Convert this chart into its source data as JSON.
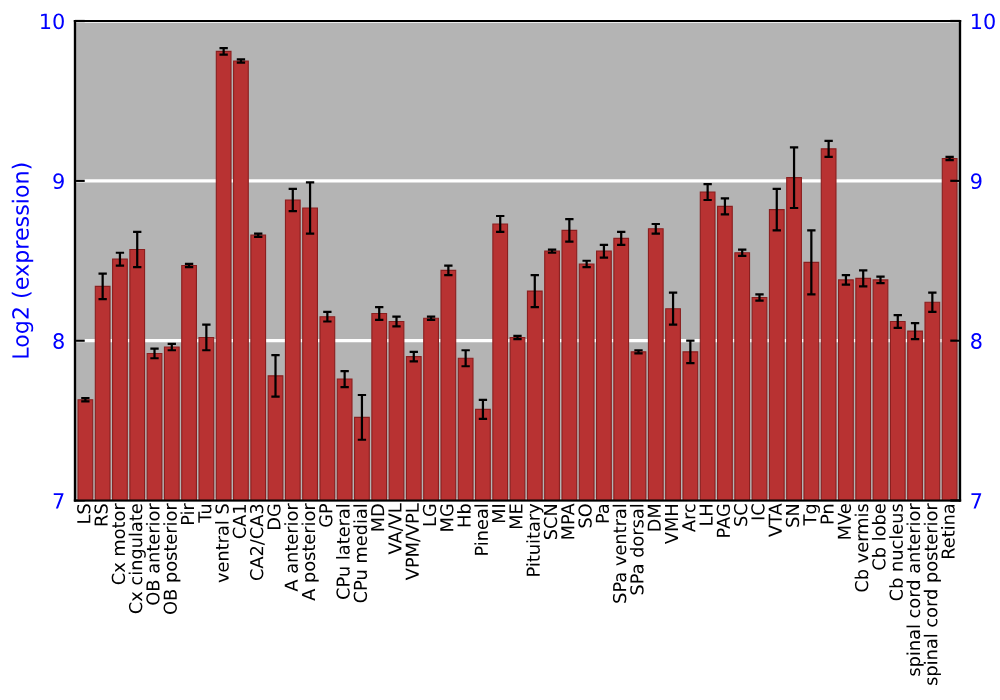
{
  "chart_data": {
    "type": "bar",
    "ylabel": "Log2 (expression)",
    "categories": [
      "LS",
      "RS",
      "Cx motor",
      "Cx cingulate",
      "OB anterior",
      "OB posterior",
      "Pir",
      "Tu",
      "ventral S",
      "CA1",
      "CA2/CA3",
      "DG",
      "A anterior",
      "A posterior",
      "GP",
      "CPu lateral",
      "CPu medial",
      "MD",
      "VA/VL",
      "VPM/VPL",
      "LG",
      "MG",
      "Hb",
      "Pineal",
      "MI",
      "ME",
      "Pituitary",
      "SCN",
      "MPA",
      "SO",
      "Pa",
      "SPa ventral",
      "SPa dorsal",
      "DM",
      "VMH",
      "Arc",
      "LH",
      "PAG",
      "SC",
      "IC",
      "VTA",
      "SN",
      "Tg",
      "Pn",
      "MVe",
      "Cb vermis",
      "Cb lobe",
      "Cb nucleus",
      "spinal cord anterior",
      "spinal cord posterior",
      "Retina"
    ],
    "values": [
      7.63,
      8.34,
      8.51,
      8.57,
      7.92,
      7.96,
      8.47,
      8.02,
      9.81,
      9.75,
      8.66,
      7.78,
      8.88,
      8.83,
      8.15,
      7.76,
      7.52,
      8.17,
      8.12,
      7.9,
      8.14,
      8.44,
      7.89,
      7.57,
      8.73,
      8.02,
      8.31,
      8.56,
      8.69,
      8.48,
      8.56,
      8.64,
      7.93,
      8.7,
      8.2,
      7.93,
      8.93,
      8.84,
      8.55,
      8.27,
      8.82,
      9.02,
      8.49,
      9.2,
      8.38,
      8.39,
      8.38,
      8.12,
      8.06,
      8.24,
      9.14
    ],
    "errors": [
      0.01,
      0.08,
      0.04,
      0.11,
      0.03,
      0.02,
      0.01,
      0.08,
      0.02,
      0.01,
      0.01,
      0.13,
      0.07,
      0.16,
      0.03,
      0.05,
      0.14,
      0.04,
      0.03,
      0.03,
      0.01,
      0.03,
      0.05,
      0.06,
      0.05,
      0.01,
      0.1,
      0.01,
      0.07,
      0.02,
      0.04,
      0.04,
      0.01,
      0.03,
      0.1,
      0.07,
      0.05,
      0.05,
      0.02,
      0.02,
      0.13,
      0.19,
      0.2,
      0.05,
      0.03,
      0.05,
      0.02,
      0.04,
      0.05,
      0.06,
      0.01
    ],
    "color": "#b83232",
    "ylim": [
      7,
      10
    ],
    "yticks": [
      7,
      8,
      9,
      10
    ],
    "y2lim": [
      7,
      10
    ],
    "y2ticks": [
      7,
      8,
      9,
      10
    ],
    "grid": "y"
  }
}
